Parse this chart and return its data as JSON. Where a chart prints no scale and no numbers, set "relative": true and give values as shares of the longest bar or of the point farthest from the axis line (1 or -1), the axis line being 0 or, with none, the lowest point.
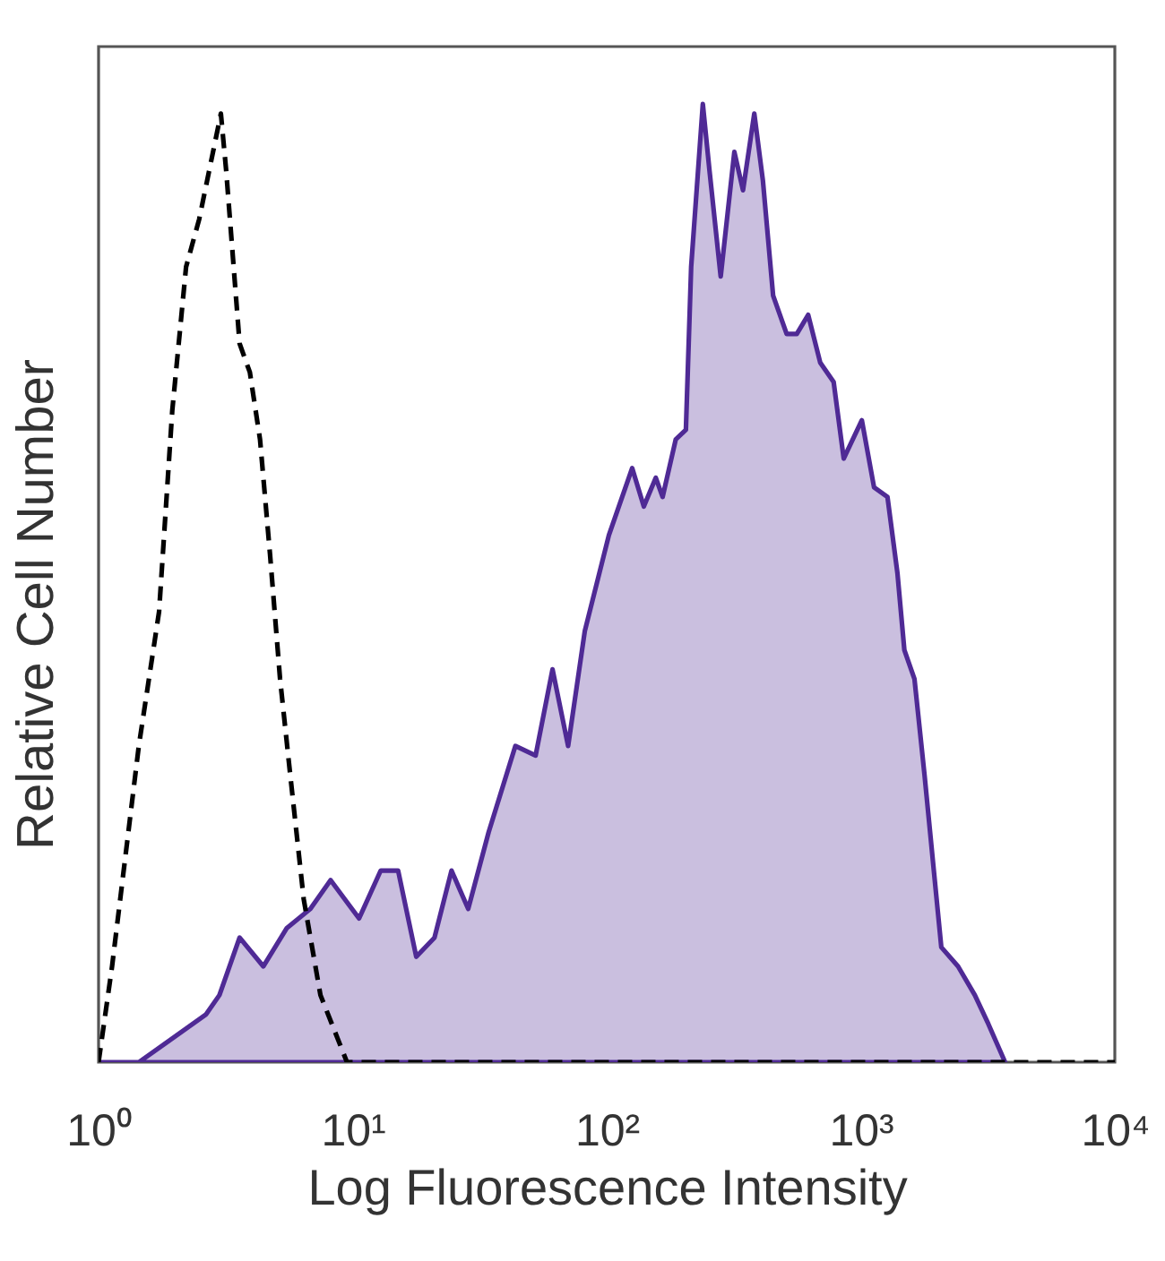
{
  "chart_data": {
    "type": "area",
    "xlabel": "Log Fluorescence Intensity",
    "ylabel": "Relative Cell Number",
    "relative": true,
    "log": "x",
    "xlim": [
      1,
      10000
    ],
    "xticks": [
      {
        "value": 1,
        "label": "10⁰"
      },
      {
        "value": 10,
        "label": "10¹"
      },
      {
        "value": 100,
        "label": "10²"
      },
      {
        "value": 1000,
        "label": "10³"
      },
      {
        "value": 10000,
        "label": "10⁴"
      }
    ],
    "series": [
      {
        "color": "#4f2a95",
        "line_style": "solid",
        "x": [
          1,
          1.44,
          1.84,
          2.65,
          2.99,
          3.59,
          4.45,
          5.51,
          6.82,
          8.19,
          10.6,
          12.9,
          15.1,
          17.8,
          21,
          24.5,
          28.5,
          34.3,
          43.7,
          52.5,
          61.2,
          70.5,
          82,
          102,
          126,
          140,
          156,
          166,
          187,
          205,
          215,
          239,
          254,
          281,
          318,
          344,
          381,
          412,
          452,
          511,
          560,
          621,
          693,
          782,
          857,
          1010,
          1128,
          1274,
          1395,
          1485,
          1627,
          1782,
          2075,
          2415,
          2812,
          3177,
          3700
        ],
        "values": [
          0,
          0,
          0.02,
          0.05,
          0.07,
          0.13,
          0.1,
          0.14,
          0.16,
          0.19,
          0.15,
          0.2,
          0.2,
          0.11,
          0.13,
          0.2,
          0.16,
          0.24,
          0.33,
          0.32,
          0.41,
          0.33,
          0.45,
          0.55,
          0.62,
          0.58,
          0.61,
          0.59,
          0.65,
          0.66,
          0.83,
          1,
          0.93,
          0.82,
          0.95,
          0.91,
          0.99,
          0.92,
          0.8,
          0.76,
          0.76,
          0.78,
          0.73,
          0.71,
          0.63,
          0.67,
          0.6,
          0.59,
          0.51,
          0.43,
          0.4,
          0.3,
          0.12,
          0.1,
          0.07,
          0.04,
          0
        ]
      },
      {
        "type": "line",
        "color": "#000000",
        "line_style": "dashed",
        "x": [
          1,
          1.13,
          1.44,
          1.73,
          1.95,
          2.21,
          2.49,
          3.03,
          3.18,
          3.59,
          3.94,
          4.32,
          4.73,
          5.18,
          5.68,
          6.42,
          7.47,
          9.5,
          10000
        ],
        "values": [
          0,
          0.1,
          0.33,
          0.47,
          0.68,
          0.83,
          0.88,
          0.99,
          0.93,
          0.75,
          0.72,
          0.65,
          0.53,
          0.4,
          0.3,
          0.17,
          0.07,
          0,
          0
        ]
      }
    ]
  }
}
